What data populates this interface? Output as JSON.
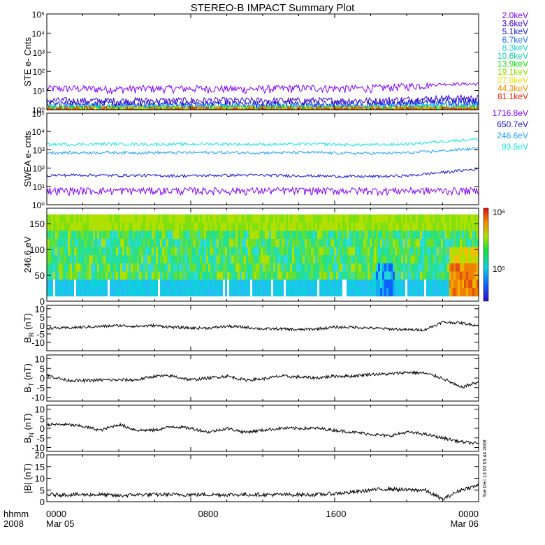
{
  "title": "STEREO-B IMPACT Summary Plot",
  "footer": {
    "time_label": "hhmm",
    "year_label": "2008",
    "ticks": [
      "0000",
      "0800",
      "1600",
      "0000"
    ],
    "dates": [
      "Mar 05",
      "Mar 06"
    ]
  },
  "side_note": "Tue Dec 13 02:05:44 2008",
  "colors": {
    "purple": "#7f00ff",
    "dark_blue": "#1010d0",
    "blue": "#1e6cff",
    "light_blue": "#3ab0ff",
    "cyan": "#18e0e0",
    "green": "#10e010",
    "yellow_green": "#90e000",
    "yellow": "#f0e000",
    "orange": "#f09000",
    "red": "#e02000"
  },
  "chart_data": [
    {
      "panel": "ste",
      "type": "line",
      "ylabel": "STE e- Cnts",
      "yscale": "log",
      "ylim_exp": [
        0,
        5
      ],
      "ytick_labels": [
        "10⁰",
        "10¹",
        "10²",
        "10³",
        "10⁴",
        "10⁵"
      ],
      "x_range_hours": [
        0,
        24
      ],
      "series": [
        {
          "name": "2.0keV",
          "color": "#7f00ff",
          "base": 13,
          "trend": [
            13,
            13,
            12,
            13,
            13,
            13,
            12,
            13,
            14,
            13,
            14,
            18,
            22,
            22
          ]
        },
        {
          "name": "3.6keV",
          "color": "#3a00cc",
          "base": 3,
          "trend": [
            3,
            3,
            3,
            3,
            3,
            3,
            3,
            3,
            3,
            3,
            3,
            3.5,
            4,
            4
          ]
        },
        {
          "name": "5.1keV",
          "color": "#1010d0",
          "base": 2,
          "trend": [
            2,
            2,
            2,
            2,
            2,
            2,
            2,
            2,
            2,
            2,
            2,
            2.5,
            3,
            3
          ]
        },
        {
          "name": "6.7keV",
          "color": "#1e6cff",
          "base": 1.5,
          "trend": [
            1.5,
            1.5,
            1.5,
            1.5,
            1.5,
            1.5,
            1.5,
            1.5,
            1.5,
            1.5,
            1.5,
            1.8,
            2,
            2
          ]
        },
        {
          "name": "8.3keV",
          "color": "#18d0d0",
          "base": 1.3,
          "trend": [
            1.3,
            1.3,
            1.3,
            1.3,
            1.3,
            1.3,
            1.3,
            1.3,
            1.3,
            1.3,
            1.3,
            1.4,
            1.5,
            1.5
          ]
        },
        {
          "name": "10.6keV",
          "color": "#10c8a0",
          "base": 1.2,
          "trend": [
            1.2,
            1.2,
            1.2,
            1.2,
            1.2,
            1.2,
            1.2,
            1.2,
            1.2,
            1.2,
            1.2,
            1.2,
            1.3,
            1.3
          ]
        },
        {
          "name": "13.9keV",
          "color": "#10e010",
          "base": 1.1,
          "trend": [
            1.1,
            1.1,
            1.1,
            1.1,
            1.1,
            1.1,
            1.1,
            1.1,
            1.1,
            1.1,
            1.1,
            1.1,
            1.1,
            1.1
          ]
        },
        {
          "name": "19.1keV",
          "color": "#90e000",
          "base": 1.05,
          "trend": [
            1.05,
            1.05,
            1.05,
            1.05,
            1.05,
            1.05,
            1.05,
            1.05,
            1.05,
            1.05,
            1.05,
            1.05,
            1.05,
            1.05
          ]
        },
        {
          "name": "27.8keV",
          "color": "#f0e000",
          "base": 1.02,
          "trend": [
            1.02,
            1.02,
            1.02,
            1.02,
            1.02,
            1.02,
            1.02,
            1.02,
            1.02,
            1.02,
            1.02,
            1.02,
            1.02,
            1.02
          ]
        },
        {
          "name": "44.3keV",
          "color": "#f09000",
          "base": 1.01,
          "trend": [
            1.01,
            1.01,
            1.01,
            1.01,
            1.01,
            1.01,
            1.01,
            1.01,
            1.01,
            1.01,
            1.01,
            1.01,
            1.01,
            1.01
          ]
        },
        {
          "name": "81.1keV",
          "color": "#e02000",
          "base": 1.0,
          "trend": [
            1,
            1,
            1,
            1,
            1,
            1,
            1,
            1,
            1,
            1,
            1,
            1,
            1,
            1
          ]
        }
      ]
    },
    {
      "panel": "swea",
      "type": "line",
      "ylabel": "SWEA e- cnts",
      "yscale": "log",
      "ylim_exp": [
        0,
        5
      ],
      "ytick_labels": [
        "10⁰",
        "10¹",
        "10²",
        "10³",
        "10⁴",
        "10⁵"
      ],
      "x_range_hours": [
        0,
        24
      ],
      "series": [
        {
          "name": "1716.8eV",
          "color": "#7f00ff",
          "trend": [
            6,
            6,
            6,
            6,
            6,
            6,
            6,
            6,
            6,
            6,
            6,
            6,
            6,
            6
          ]
        },
        {
          "name": "650.7eV",
          "color": "#1010d0",
          "trend": [
            40,
            42,
            40,
            40,
            38,
            40,
            42,
            40,
            38,
            35,
            35,
            40,
            60,
            90
          ]
        },
        {
          "name": "246.6eV",
          "color": "#1e9cff",
          "trend": [
            700,
            700,
            720,
            700,
            700,
            720,
            700,
            700,
            720,
            650,
            650,
            700,
            900,
            1200
          ]
        },
        {
          "name": "93.5eV",
          "color": "#18e0e0",
          "trend": [
            2000,
            2000,
            2100,
            2000,
            2000,
            2100,
            2000,
            2000,
            2100,
            1900,
            1900,
            2100,
            3000,
            3800
          ]
        }
      ]
    },
    {
      "panel": "spectrogram",
      "type": "heatmap",
      "ylabel": "246.6 eV",
      "ylim": [
        0,
        180
      ],
      "yticks": [
        0,
        50,
        100,
        150
      ],
      "colorbar_labels": [
        "10⁵",
        "10⁶"
      ],
      "x_range_hours": [
        0,
        24
      ]
    },
    {
      "panel": "br",
      "type": "line",
      "ylabel": "B_R (nT)",
      "ylim": [
        -15,
        12
      ],
      "yticks": [
        -10,
        -5,
        0,
        5,
        10
      ],
      "x_range_hours": [
        0,
        24
      ],
      "trend": [
        -1.5,
        -1.5,
        -1,
        -0.5,
        0,
        -0.5,
        0,
        -1,
        -1.5,
        -1.5,
        -0.5,
        -1,
        -2,
        -2,
        -2.5,
        -2,
        -1,
        -1,
        -1.5,
        -2,
        -2.5,
        -2.5,
        2,
        1.5,
        0
      ]
    },
    {
      "panel": "bt",
      "type": "line",
      "ylabel": "B_T (nT)",
      "ylim": [
        -12,
        12
      ],
      "yticks": [
        -10,
        -5,
        0,
        5,
        10
      ],
      "x_range_hours": [
        0,
        24
      ],
      "trend": [
        1.5,
        -1,
        -1.5,
        -1,
        -1,
        -1,
        1,
        1,
        -1,
        0,
        1,
        -1,
        -0.5,
        1,
        0.5,
        0,
        1,
        1,
        2,
        2,
        3,
        2.5,
        0,
        -5,
        -2
      ]
    },
    {
      "panel": "bn",
      "type": "line",
      "ylabel": "B_N (nT)",
      "ylim": [
        -12,
        12
      ],
      "yticks": [
        -10,
        -5,
        0,
        5,
        10
      ],
      "x_range_hours": [
        0,
        24
      ],
      "trend": [
        2,
        2,
        1,
        -1,
        2,
        -1,
        -1,
        1,
        0,
        -2,
        0,
        -2,
        -1,
        0,
        0,
        0,
        -1,
        -2,
        -3,
        -4,
        -2,
        -3,
        -5,
        -7,
        -8
      ]
    },
    {
      "panel": "bmag",
      "type": "line",
      "ylabel": "|B| (nT)",
      "ylim": [
        0,
        20
      ],
      "yticks": [
        0,
        5,
        10,
        15,
        20
      ],
      "x_range_hours": [
        0,
        24
      ],
      "trend": [
        3,
        3,
        3,
        3,
        2.5,
        3,
        3,
        3,
        3,
        3,
        3,
        3,
        3,
        3,
        3,
        3,
        3.5,
        4,
        5,
        5.5,
        5,
        5,
        1,
        5,
        7
      ]
    }
  ]
}
